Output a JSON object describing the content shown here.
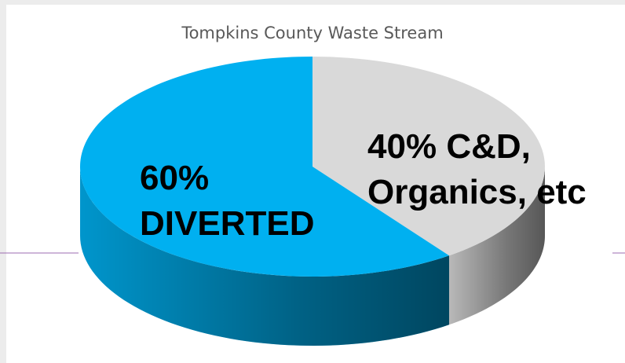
{
  "chart_data": {
    "type": "pie",
    "title": "Tompkins County Waste Stream",
    "categories": [
      "C&D, Organics, etc",
      "DIVERTED"
    ],
    "values": [
      40,
      60
    ],
    "value_labels": [
      "40%",
      "60%"
    ],
    "colors": [
      "#d9d9d9",
      "#00b0f0"
    ]
  }
}
